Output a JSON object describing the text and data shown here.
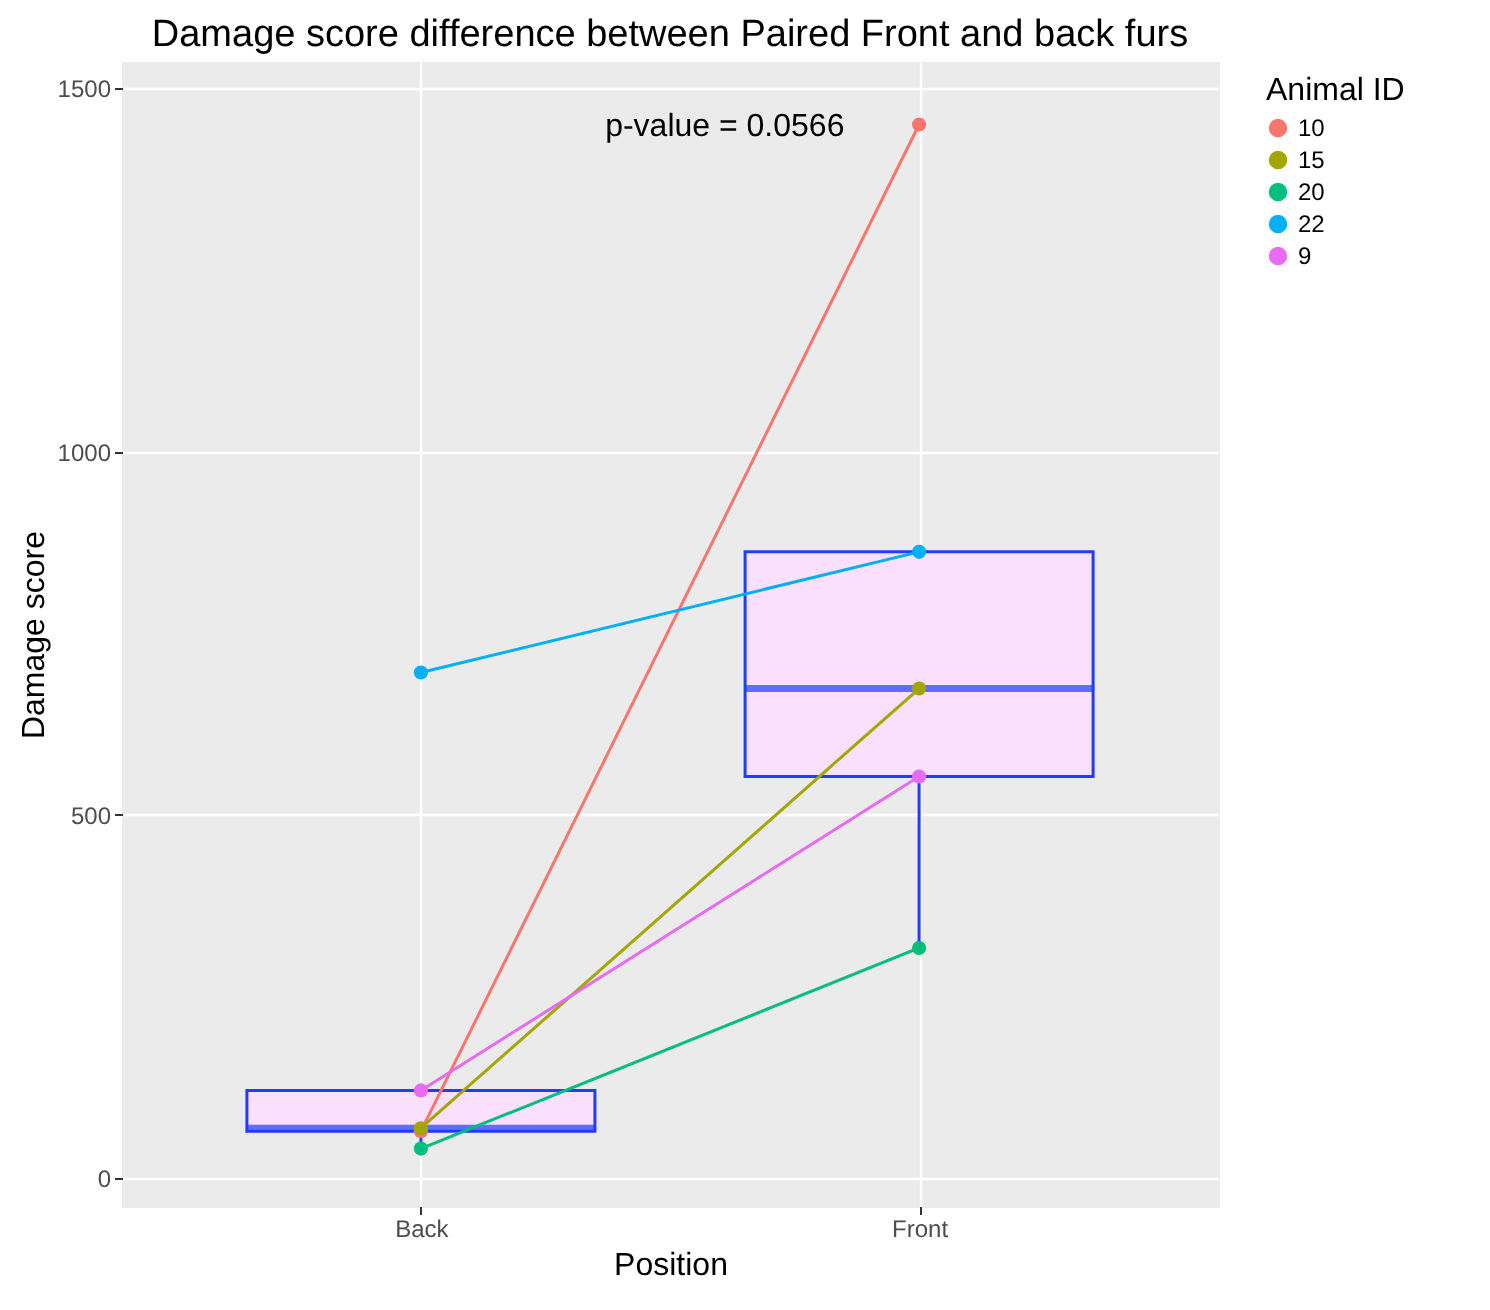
{
  "chart_data": {
    "type": "box",
    "title": "Damage score difference between Paired Front and back furs",
    "xlabel": "Position",
    "ylabel": "Damage score",
    "legend_title": "Animal ID",
    "categories": [
      "Back",
      "Front"
    ],
    "ylim": [
      -38,
      1536
    ],
    "yticks": [
      0,
      500,
      1000,
      1500
    ],
    "grid": true,
    "legend": "right",
    "marker": "circle",
    "annotations": [
      "p-value = 0.0566"
    ],
    "series": [
      {
        "color": "#1f3cff",
        "boxes": [
          {
            "low": 41,
            "q1": 65,
            "median": 69,
            "q3": 121,
            "high": 121
          },
          {
            "low": 317,
            "q1": 553,
            "median": 674,
            "q3": 862,
            "high": 862
          }
        ]
      },
      {
        "type": "line",
        "name": "10",
        "color": "#f8766d",
        "values": [
          65,
          1450
        ]
      },
      {
        "type": "line",
        "name": "15",
        "color": "#a3a500",
        "values": [
          69,
          674
        ]
      },
      {
        "type": "line",
        "name": "20",
        "color": "#00bf7d",
        "values": [
          41,
          317
        ]
      },
      {
        "type": "line",
        "name": "22",
        "color": "#00b0f6",
        "values": [
          696,
          862
        ]
      },
      {
        "type": "line",
        "name": "9",
        "color": "#e76bf3",
        "values": [
          121,
          553
        ]
      }
    ]
  }
}
